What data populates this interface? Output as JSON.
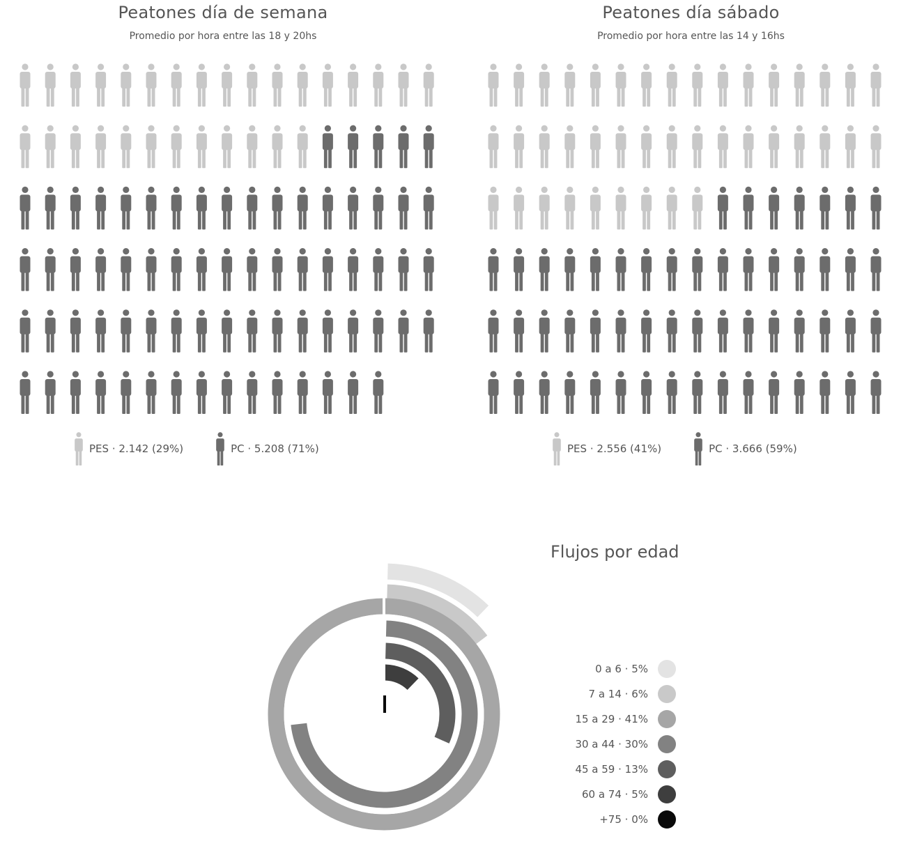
{
  "colors": {
    "pes": "#c8c8c8",
    "pc": "#6c6c6c"
  },
  "weekday": {
    "title": "Peatones día de semana",
    "subtitle": "Promedio por hora entre las 18 y 20hs",
    "legend": {
      "pes_label": "PES · 2.142 (29%)",
      "pc_label": "PC · 5.208 (71%)"
    }
  },
  "saturday": {
    "title": "Peatones día sábado",
    "subtitle": "Promedio por hora entre las 14 y 16hs",
    "legend": {
      "pes_label": "PES · 2.556 (41%)",
      "pc_label": "PC · 3.666 (59%)"
    }
  },
  "age": {
    "title": "Flujos por edad"
  },
  "chart_data": [
    {
      "type": "pictogram",
      "title": "Peatones día de semana",
      "subtitle": "Promedio por hora entre las 18 y 20hs",
      "icons_per_row": 17,
      "series": [
        {
          "name": "PES",
          "value": 2142,
          "percent": 29,
          "icons": 29,
          "color": "#c8c8c8"
        },
        {
          "name": "PC",
          "value": 5208,
          "percent": 71,
          "icons": 71,
          "color": "#6c6c6c"
        }
      ]
    },
    {
      "type": "pictogram",
      "title": "Peatones día sábado",
      "subtitle": "Promedio por hora entre las 14 y 16hs",
      "icons_per_row": 16,
      "series": [
        {
          "name": "PES",
          "value": 2556,
          "percent": 41,
          "icons": 41,
          "color": "#c8c8c8"
        },
        {
          "name": "PC",
          "value": 3666,
          "percent": 59,
          "icons": 59,
          "color": "#6c6c6c"
        }
      ]
    },
    {
      "type": "radial_bar",
      "title": "Flujos por edad",
      "categories": [
        "0 a 6",
        "7 a 14",
        "15 a 29",
        "30 a 44",
        "45 a 59",
        "60 a 74",
        "+75"
      ],
      "values": [
        5,
        6,
        41,
        30,
        13,
        5,
        0
      ],
      "unit": "%",
      "labels": [
        "0 a 6 · 5%",
        "7 a 14 · 6%",
        "15 a 29 · 41%",
        "30 a 44 · 30%",
        "45 a 59 · 13%",
        "60 a 74 · 5%",
        "+75 · 0%"
      ],
      "colors": [
        "#e3e3e3",
        "#c9c9c9",
        "#a6a6a6",
        "#828282",
        "#5e5e5e",
        "#3e3e3e",
        "#0a0a0a"
      ],
      "full_circle_value": 41
    }
  ]
}
